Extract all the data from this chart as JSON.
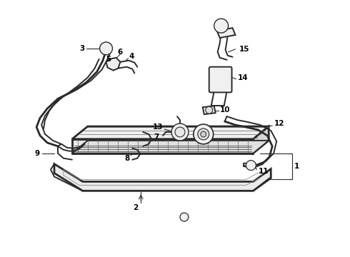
{
  "bg_color": "#ffffff",
  "line_color": "#2a2a2a",
  "fig_width": 4.9,
  "fig_height": 3.6,
  "dpi": 100,
  "lw_main": 1.4,
  "lw_thin": 0.8,
  "lw_thick": 2.0,
  "font_size": 7.5
}
